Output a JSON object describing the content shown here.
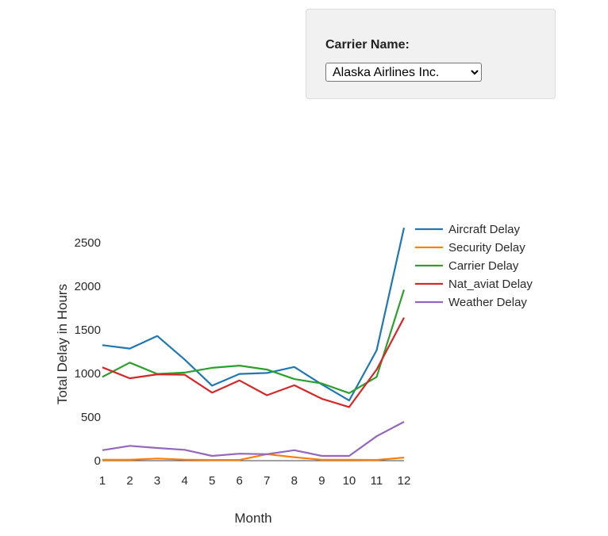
{
  "filter": {
    "label": "Carrier Name:",
    "selected": "Alaska Airlines Inc."
  },
  "chart_data": {
    "type": "line",
    "title": "",
    "xlabel": "Month",
    "ylabel": "Total Delay in Hours",
    "x": [
      1,
      2,
      3,
      4,
      5,
      6,
      7,
      8,
      9,
      10,
      11,
      12
    ],
    "xlim": [
      1,
      12
    ],
    "ylim": [
      -20,
      2700
    ],
    "yticks": [
      0,
      500,
      1000,
      1500,
      2000,
      2500
    ],
    "legend_position": "top-right",
    "grid": false,
    "series": [
      {
        "name": "Aircraft Delay",
        "color": "#1f77b4",
        "values": [
          1325,
          1285,
          1430,
          1160,
          860,
          995,
          1005,
          1075,
          875,
          690,
          1265,
          2670
        ]
      },
      {
        "name": "Security Delay",
        "color": "#ff7f0e",
        "values": [
          10,
          10,
          25,
          12,
          8,
          8,
          75,
          40,
          10,
          10,
          8,
          35
        ]
      },
      {
        "name": "Carrier Delay",
        "color": "#2ca02c",
        "values": [
          960,
          1125,
          995,
          1010,
          1065,
          1090,
          1045,
          935,
          885,
          775,
          960,
          1960
        ]
      },
      {
        "name": "Nat_aviat Delay",
        "color": "#d62728",
        "values": [
          1070,
          945,
          990,
          985,
          780,
          920,
          750,
          865,
          710,
          615,
          1045,
          1640
        ]
      },
      {
        "name": "Weather Delay",
        "color": "#9467bd",
        "values": [
          120,
          170,
          145,
          125,
          55,
          80,
          75,
          120,
          55,
          55,
          280,
          445
        ]
      }
    ]
  }
}
